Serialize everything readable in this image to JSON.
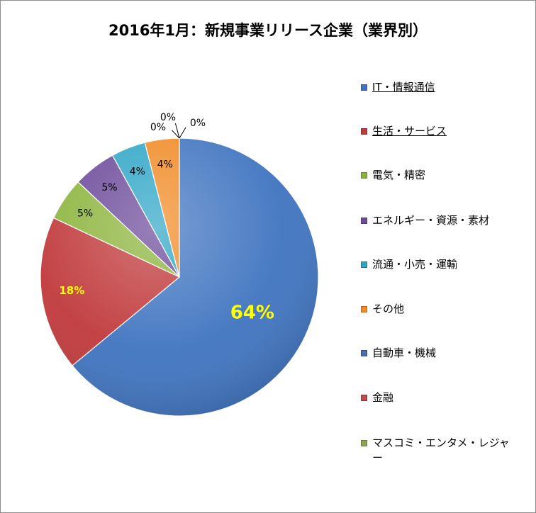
{
  "chart_data": {
    "type": "pie",
    "title": "2016年1月：新規事業リリース企業（業界別）",
    "slices": [
      {
        "label": "IT・情報通信",
        "value": 64,
        "data_label": "64%",
        "color": "#3f74c0"
      },
      {
        "label": "生活・サービス",
        "value": 18,
        "data_label": "18%",
        "color": "#c0393b"
      },
      {
        "label": "電気・精密",
        "value": 5,
        "data_label": "5%",
        "color": "#8cb43c"
      },
      {
        "label": "エネルギー・資源・素材",
        "value": 5,
        "data_label": "5%",
        "color": "#6c4a9a"
      },
      {
        "label": "流通・小売・運輸",
        "value": 4,
        "data_label": "4%",
        "color": "#2ea5c6"
      },
      {
        "label": "その他",
        "value": 4,
        "data_label": "4%",
        "color": "#f08a24"
      },
      {
        "label": "自動車・機械",
        "value": 0,
        "data_label": "0%",
        "color": "#4a6fb0"
      },
      {
        "label": "金融",
        "value": 0,
        "data_label": "0%",
        "color": "#c04a4a"
      },
      {
        "label": "マスコミ・エンタメ・レジャー",
        "value": 0,
        "data_label": "0%",
        "color": "#8aa84a"
      }
    ],
    "legend_position": "right",
    "underlined_legend_entries": [
      "IT・情報通信",
      "生活・サービス"
    ]
  }
}
